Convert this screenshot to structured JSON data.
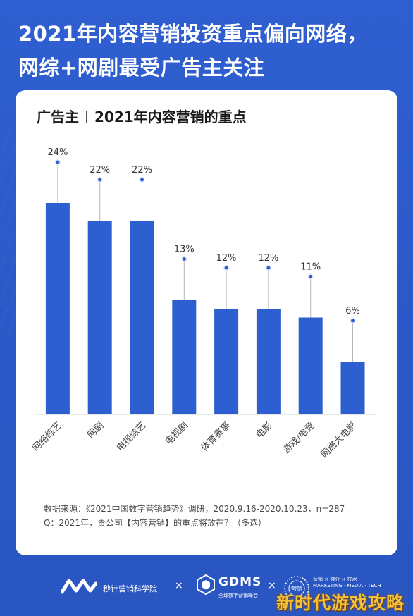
{
  "headline": {
    "line1": "2021年内容营销投资重点偏向网络，",
    "line2": "网综+网剧最受广告主关注"
  },
  "card": {
    "title_left": "广告主",
    "title_right": "2021年内容营销的重点"
  },
  "chart_data": {
    "type": "bar",
    "title": "2021年内容营销的重点",
    "categories": [
      "网络综艺",
      "网剧",
      "电视综艺",
      "电视剧",
      "体育赛事",
      "电影",
      "游戏/电竞",
      "网络大电影"
    ],
    "values": [
      24,
      22,
      22,
      13,
      12,
      12,
      11,
      6
    ],
    "value_labels": [
      "24%",
      "22%",
      "22%",
      "13%",
      "12%",
      "12%",
      "11%",
      "6%"
    ],
    "unit": "%",
    "ylim": [
      0,
      24
    ],
    "bar_color": "#2e5fd1",
    "grid": false,
    "legend": "none"
  },
  "notes": {
    "line1": "数据来源：《2021中国数字营销趋势》调研，2020.9.16-2020.10.23，n=287",
    "line2": "Q：2021年，贵公司【内容营销】的重点将放在？（多选）"
  },
  "footer": {
    "brand1": "秒针营销科学院",
    "x": "×",
    "gdms": "GDMS",
    "gdms_sub": "全球数字营销峰会",
    "brand3_line1": "营销 × 媒介 × 技术",
    "brand3_line2": "MARKETING · MEDIA · TECH",
    "seal_text": "营销"
  },
  "watermark": "新时代游戏攻略",
  "colors": {
    "background": "#2f5fd0",
    "bar": "#2e5fd1",
    "watermark": "#f3c23c"
  }
}
